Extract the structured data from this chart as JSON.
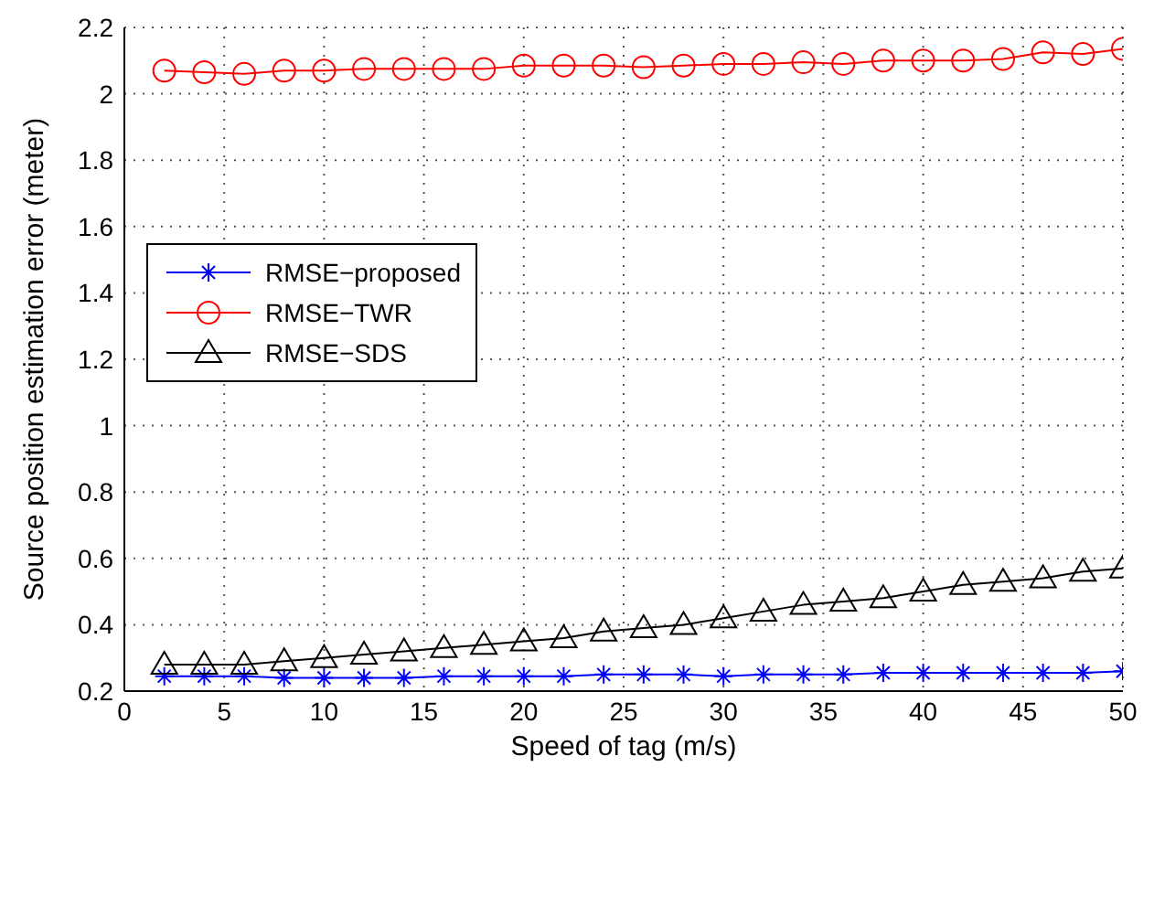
{
  "chart_data": {
    "type": "line",
    "xlabel": "Speed of tag (m/s)",
    "ylabel": "Source position estimation error (meter)",
    "x": [
      2,
      4,
      6,
      8,
      10,
      12,
      14,
      16,
      18,
      20,
      22,
      24,
      26,
      28,
      30,
      32,
      34,
      36,
      38,
      40,
      42,
      44,
      46,
      48,
      50
    ],
    "series": [
      {
        "name": "RMSE−proposed",
        "color": "#0000ff",
        "marker": "cross",
        "values": [
          0.245,
          0.245,
          0.245,
          0.24,
          0.24,
          0.24,
          0.24,
          0.245,
          0.245,
          0.245,
          0.245,
          0.25,
          0.25,
          0.25,
          0.245,
          0.25,
          0.25,
          0.25,
          0.255,
          0.255,
          0.255,
          0.255,
          0.255,
          0.255,
          0.26
        ]
      },
      {
        "name": "RMSE−TWR",
        "color": "#ff0000",
        "marker": "circle",
        "values": [
          2.07,
          2.065,
          2.06,
          2.07,
          2.07,
          2.075,
          2.075,
          2.075,
          2.075,
          2.085,
          2.085,
          2.085,
          2.08,
          2.085,
          2.09,
          2.09,
          2.095,
          2.09,
          2.1,
          2.1,
          2.1,
          2.105,
          2.125,
          2.12,
          2.135
        ]
      },
      {
        "name": "RMSE−SDS",
        "color": "#000000",
        "marker": "triangle",
        "values": [
          0.28,
          0.28,
          0.28,
          0.29,
          0.3,
          0.31,
          0.32,
          0.33,
          0.34,
          0.35,
          0.36,
          0.38,
          0.39,
          0.4,
          0.42,
          0.44,
          0.46,
          0.47,
          0.48,
          0.5,
          0.52,
          0.53,
          0.54,
          0.56,
          0.57
        ]
      }
    ],
    "xlim": [
      0,
      50
    ],
    "xticks": [
      0,
      5,
      10,
      15,
      20,
      25,
      30,
      35,
      40,
      45,
      50
    ],
    "ylim": [
      0.2,
      2.2
    ],
    "yticks": [
      0.2,
      0.4,
      0.6,
      0.8,
      1,
      1.2,
      1.4,
      1.6,
      1.8,
      2,
      2.2
    ],
    "grid": true,
    "line_style": "solid",
    "legend": "top left"
  }
}
